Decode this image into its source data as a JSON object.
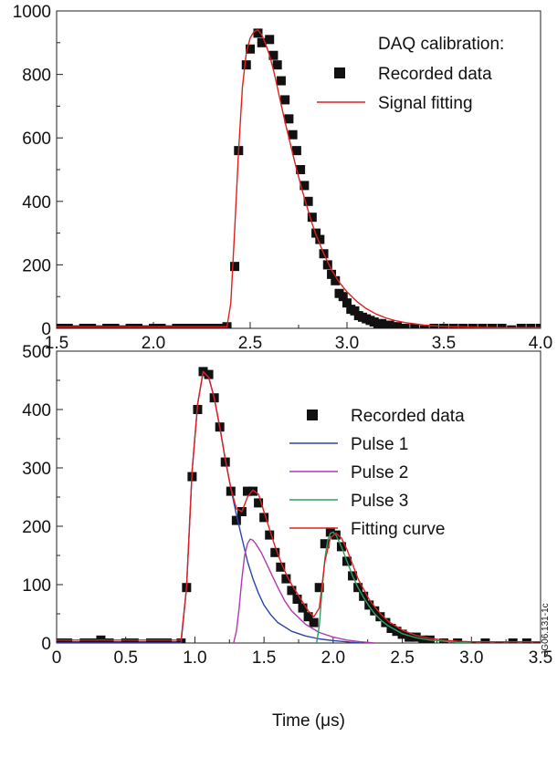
{
  "figure_ref": "JG06.131-1c",
  "xlabel": "Time (μs)",
  "chart_data": [
    {
      "type": "line",
      "title": "",
      "xlabel": "",
      "ylabel": "",
      "xlim": [
        1.5,
        4.0
      ],
      "ylim": [
        0,
        1000
      ],
      "grid": false,
      "legend_position": "top-right",
      "xticks": [
        "1.5",
        "2.0",
        "2.5",
        "3.0",
        "3.5",
        "4.0"
      ],
      "yticks": [
        "0",
        "200",
        "400",
        "600",
        "800",
        "1000"
      ],
      "legend": {
        "title": "DAQ calibration:",
        "entries": [
          "Recorded data",
          "Signal fitting"
        ]
      },
      "series": [
        {
          "name": "Recorded data",
          "kind": "markers",
          "color": "#111111",
          "x": [
            1.52,
            1.56,
            1.6,
            1.64,
            1.68,
            1.72,
            1.76,
            1.8,
            1.84,
            1.88,
            1.92,
            1.96,
            2.0,
            2.04,
            2.08,
            2.12,
            2.16,
            2.2,
            2.24,
            2.28,
            2.32,
            2.36,
            2.38,
            2.42,
            2.44,
            2.48,
            2.5,
            2.54,
            2.56,
            2.6,
            2.62,
            2.64,
            2.66,
            2.68,
            2.7,
            2.72,
            2.74,
            2.76,
            2.78,
            2.8,
            2.82,
            2.84,
            2.86,
            2.88,
            2.9,
            2.92,
            2.94,
            2.96,
            2.98,
            3.0,
            3.02,
            3.04,
            3.06,
            3.08,
            3.1,
            3.12,
            3.14,
            3.16,
            3.18,
            3.2,
            3.22,
            3.24,
            3.26,
            3.28,
            3.3,
            3.35,
            3.4,
            3.45,
            3.5,
            3.55,
            3.6,
            3.65,
            3.7,
            3.75,
            3.8,
            3.85,
            3.9,
            3.95,
            4.0
          ],
          "y": [
            0,
            0,
            -5,
            0,
            0,
            -5,
            0,
            0,
            -5,
            0,
            0,
            -5,
            0,
            0,
            -5,
            0,
            0,
            0,
            0,
            0,
            0,
            0,
            5,
            195,
            560,
            830,
            880,
            930,
            900,
            910,
            860,
            830,
            780,
            720,
            660,
            610,
            560,
            500,
            450,
            400,
            350,
            300,
            280,
            235,
            200,
            170,
            150,
            110,
            100,
            80,
            60,
            55,
            40,
            35,
            30,
            25,
            20,
            15,
            15,
            10,
            10,
            5,
            5,
            0,
            0,
            0,
            -5,
            0,
            0,
            0,
            0,
            0,
            0,
            0,
            0,
            -5,
            0,
            0,
            0
          ]
        },
        {
          "name": "Signal fitting",
          "kind": "line",
          "color": "#e02020",
          "x": [
            1.5,
            1.6,
            1.7,
            1.8,
            1.9,
            2.0,
            2.1,
            2.2,
            2.3,
            2.38,
            2.4,
            2.42,
            2.44,
            2.46,
            2.48,
            2.5,
            2.52,
            2.54,
            2.56,
            2.58,
            2.6,
            2.62,
            2.64,
            2.66,
            2.68,
            2.7,
            2.72,
            2.74,
            2.76,
            2.78,
            2.8,
            2.82,
            2.84,
            2.86,
            2.88,
            2.9,
            2.92,
            2.94,
            2.96,
            2.98,
            3.0,
            3.05,
            3.1,
            3.15,
            3.2,
            3.25,
            3.3,
            3.4,
            3.5,
            3.6,
            3.7,
            3.8,
            3.9,
            4.0
          ],
          "y": [
            5,
            5,
            5,
            5,
            5,
            5,
            5,
            5,
            5,
            5,
            80,
            310,
            560,
            760,
            870,
            915,
            935,
            940,
            925,
            895,
            860,
            815,
            760,
            705,
            650,
            600,
            550,
            500,
            455,
            410,
            370,
            330,
            295,
            265,
            235,
            210,
            185,
            165,
            145,
            130,
            115,
            85,
            62,
            45,
            33,
            24,
            18,
            10,
            6,
            4,
            3,
            2,
            2,
            2
          ]
        }
      ]
    },
    {
      "type": "line",
      "title": "",
      "xlabel": "Time (μs)",
      "ylabel": "",
      "xlim": [
        0,
        3.5
      ],
      "ylim": [
        0,
        500
      ],
      "grid": false,
      "legend_position": "top-right",
      "xticks": [
        "0",
        "0.5",
        "1.0",
        "1.5",
        "2.0",
        "2.5",
        "3.0",
        "3.5"
      ],
      "yticks": [
        "0",
        "100",
        "200",
        "300",
        "400",
        "500"
      ],
      "legend": {
        "title": "",
        "entries": [
          "Recorded data",
          "Pulse 1",
          "Pulse 2",
          "Pulse 3",
          "Fitting curve"
        ]
      },
      "series": [
        {
          "name": "Recorded data",
          "kind": "markers",
          "color": "#111111",
          "x": [
            0.02,
            0.08,
            0.14,
            0.2,
            0.26,
            0.32,
            0.38,
            0.44,
            0.5,
            0.56,
            0.62,
            0.68,
            0.74,
            0.8,
            0.86,
            0.9,
            0.94,
            0.98,
            1.02,
            1.06,
            1.1,
            1.14,
            1.18,
            1.22,
            1.26,
            1.3,
            1.34,
            1.38,
            1.42,
            1.46,
            1.5,
            1.54,
            1.58,
            1.62,
            1.66,
            1.7,
            1.74,
            1.78,
            1.82,
            1.86,
            1.9,
            1.94,
            1.98,
            2.02,
            2.06,
            2.1,
            2.14,
            2.18,
            2.22,
            2.26,
            2.3,
            2.34,
            2.38,
            2.42,
            2.46,
            2.5,
            2.55,
            2.6,
            2.65,
            2.7,
            2.8,
            2.9,
            3.0,
            3.1,
            3.2,
            3.3,
            3.4,
            3.48
          ],
          "y": [
            0,
            0,
            -5,
            0,
            0,
            5,
            0,
            -5,
            0,
            0,
            -5,
            0,
            0,
            0,
            -5,
            0,
            95,
            285,
            400,
            465,
            460,
            420,
            370,
            310,
            260,
            210,
            225,
            260,
            260,
            240,
            215,
            185,
            155,
            130,
            110,
            90,
            75,
            60,
            45,
            35,
            95,
            170,
            190,
            185,
            165,
            140,
            115,
            95,
            80,
            65,
            55,
            45,
            35,
            25,
            20,
            15,
            10,
            10,
            5,
            5,
            0,
            0,
            -5,
            0,
            -5,
            0,
            0,
            -5
          ]
        },
        {
          "name": "Pulse 1",
          "kind": "line",
          "color": "#2a44b0",
          "x": [
            0.0,
            0.9,
            0.94,
            0.98,
            1.02,
            1.06,
            1.1,
            1.14,
            1.18,
            1.22,
            1.26,
            1.3,
            1.34,
            1.38,
            1.42,
            1.46,
            1.5,
            1.55,
            1.6,
            1.7,
            1.8,
            1.9,
            2.0,
            2.1,
            2.2
          ],
          "y": [
            0,
            0,
            95,
            295,
            410,
            465,
            455,
            420,
            370,
            315,
            265,
            220,
            180,
            140,
            110,
            85,
            65,
            48,
            35,
            20,
            12,
            7,
            4,
            2,
            0
          ]
        },
        {
          "name": "Pulse 2",
          "kind": "line",
          "color": "#b03ab0",
          "x": [
            1.28,
            1.3,
            1.32,
            1.34,
            1.36,
            1.38,
            1.4,
            1.42,
            1.44,
            1.48,
            1.52,
            1.56,
            1.6,
            1.65,
            1.7,
            1.8,
            1.9,
            2.0,
            2.1,
            2.2,
            2.3
          ],
          "y": [
            0,
            20,
            60,
            110,
            150,
            170,
            178,
            176,
            170,
            155,
            135,
            115,
            95,
            72,
            55,
            32,
            18,
            10,
            5,
            2,
            0
          ]
        },
        {
          "name": "Pulse 3",
          "kind": "line",
          "color": "#2aa060",
          "x": [
            1.88,
            1.9,
            1.92,
            1.94,
            1.96,
            1.98,
            2.0,
            2.02,
            2.04,
            2.06,
            2.1,
            2.14,
            2.18,
            2.22,
            2.26,
            2.3,
            2.35,
            2.4,
            2.5,
            2.6,
            2.7,
            2.8,
            2.9,
            3.0
          ],
          "y": [
            0,
            30,
            90,
            145,
            175,
            188,
            190,
            185,
            175,
            165,
            140,
            115,
            95,
            78,
            63,
            50,
            38,
            29,
            16,
            9,
            5,
            3,
            1,
            0
          ]
        },
        {
          "name": "Fitting curve",
          "kind": "line",
          "color": "#e02020",
          "x": [
            0.0,
            0.5,
            0.9,
            0.94,
            0.98,
            1.02,
            1.06,
            1.1,
            1.14,
            1.18,
            1.22,
            1.26,
            1.3,
            1.34,
            1.38,
            1.42,
            1.46,
            1.5,
            1.54,
            1.58,
            1.62,
            1.66,
            1.7,
            1.74,
            1.78,
            1.82,
            1.86,
            1.9,
            1.94,
            1.98,
            2.02,
            2.06,
            2.1,
            2.14,
            2.18,
            2.22,
            2.26,
            2.3,
            2.35,
            2.4,
            2.5,
            2.6,
            2.7,
            2.8,
            2.9,
            3.0,
            3.2,
            3.5
          ],
          "y": [
            5,
            5,
            5,
            95,
            295,
            410,
            465,
            455,
            420,
            370,
            315,
            265,
            230,
            225,
            250,
            262,
            255,
            225,
            195,
            165,
            140,
            118,
            100,
            85,
            70,
            55,
            45,
            60,
            140,
            180,
            188,
            180,
            160,
            135,
            110,
            92,
            75,
            62,
            48,
            37,
            22,
            13,
            8,
            5,
            3,
            2,
            2,
            2
          ]
        }
      ]
    }
  ]
}
